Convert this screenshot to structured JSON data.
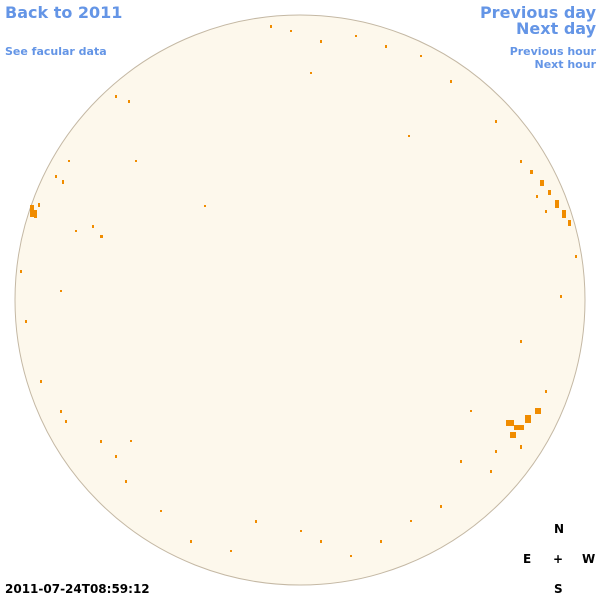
{
  "header": {
    "back_link": "Back to 2011",
    "facular_link": "See facular data",
    "previous_day": "Previous day",
    "next_day": "Next day",
    "previous_hour": "Previous hour",
    "next_hour": "Next hour"
  },
  "timestamp": "2011-07-24T08:59:12",
  "compass": {
    "north": "N",
    "east": "E",
    "center": "+",
    "west": "W",
    "south": "S"
  }
}
